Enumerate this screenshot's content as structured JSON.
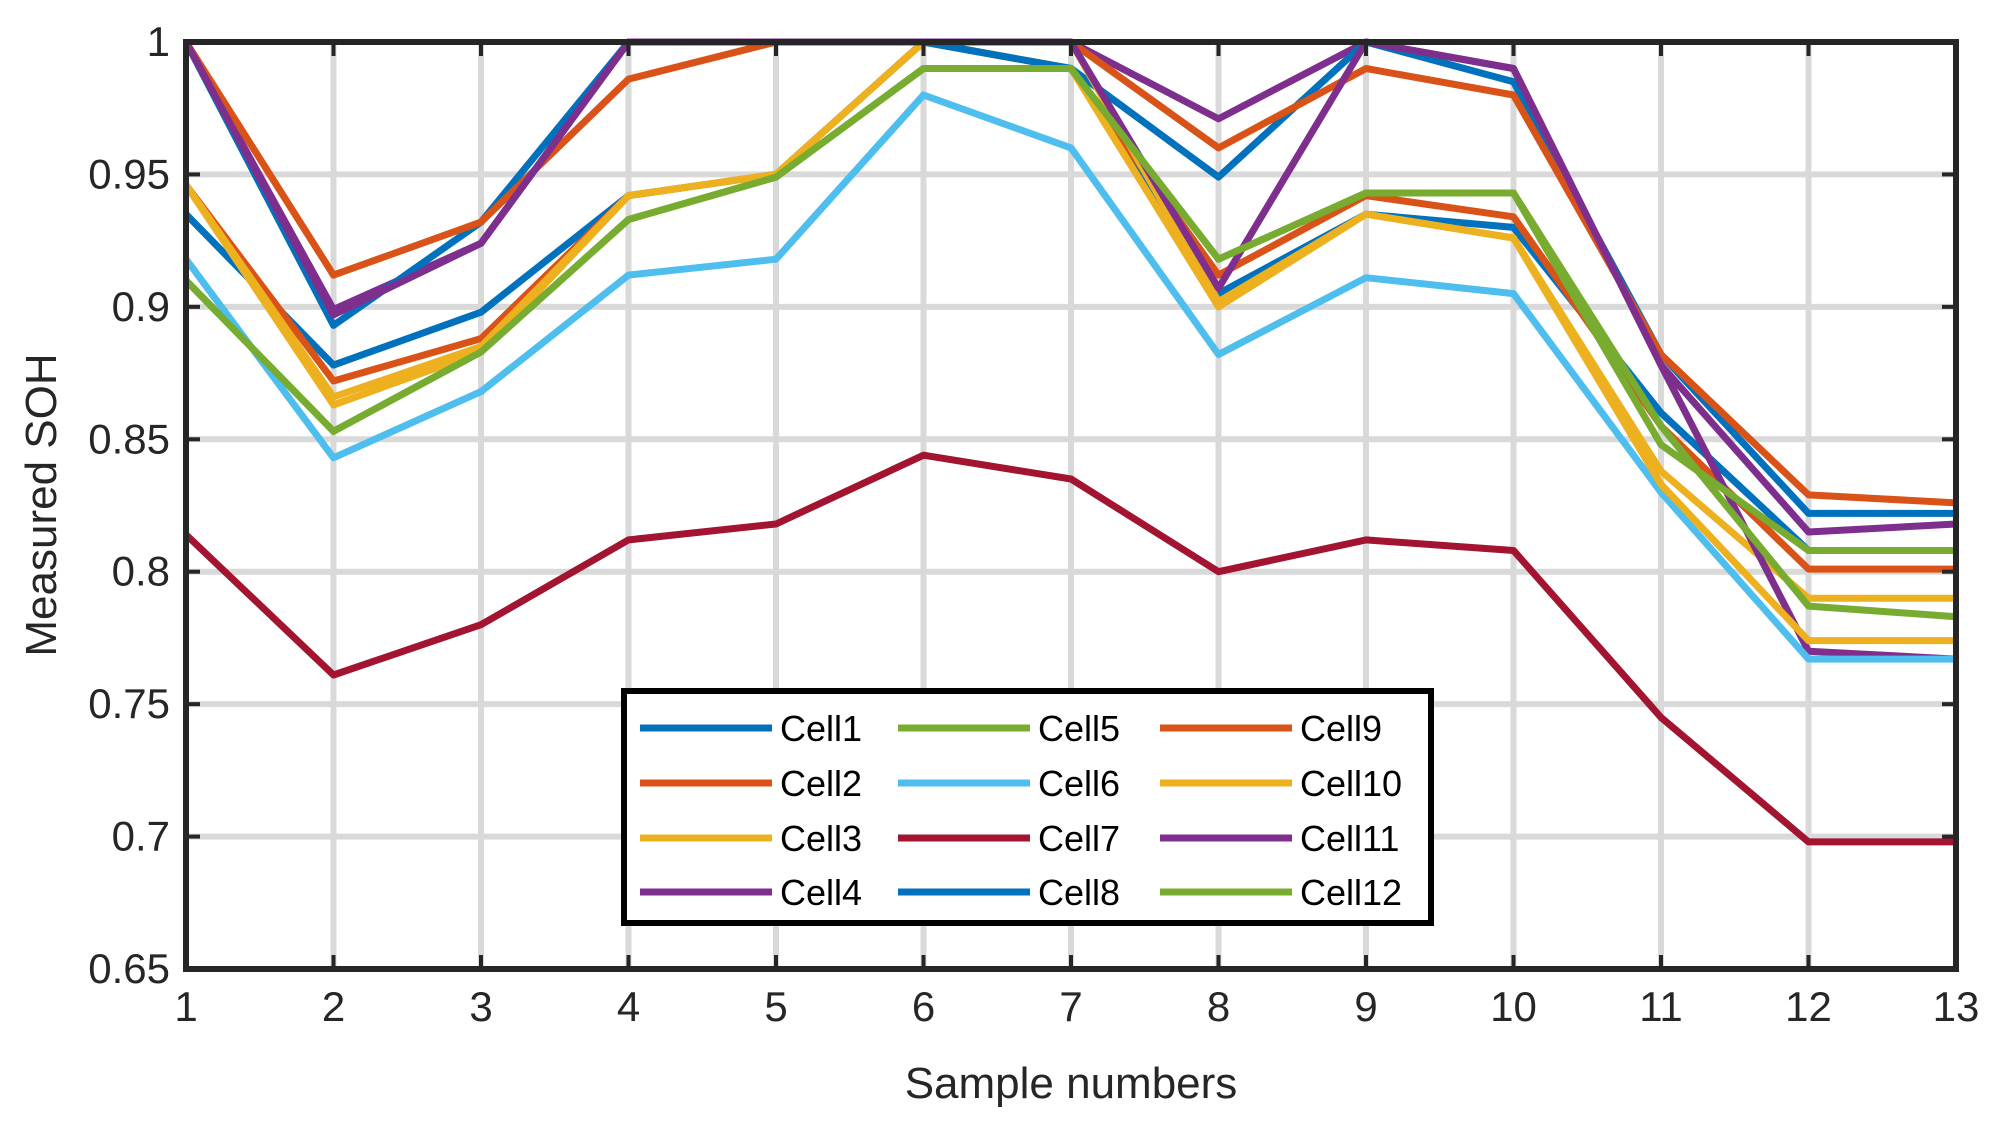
{
  "chart_data": {
    "type": "line",
    "title": "",
    "xlabel": "Sample numbers",
    "ylabel": "Measured SOH",
    "x": [
      1,
      2,
      3,
      4,
      5,
      6,
      7,
      8,
      9,
      10,
      11,
      12,
      13
    ],
    "xlim": [
      1,
      13
    ],
    "ylim": [
      0.65,
      1
    ],
    "xticks": [
      "1",
      "2",
      "3",
      "4",
      "5",
      "6",
      "7",
      "8",
      "9",
      "10",
      "11",
      "12",
      "13"
    ],
    "yticks": [
      "0.65",
      "0.7",
      "0.75",
      "0.8",
      "0.85",
      "0.9",
      "0.95",
      "1"
    ],
    "ytick_values": [
      0.65,
      0.7,
      0.75,
      0.8,
      0.85,
      0.9,
      0.95,
      1.0
    ],
    "grid": true,
    "legend_location": "bottom-center",
    "legend_columns": 3,
    "series": [
      {
        "name": "Cell1",
        "color": "#0072BD",
        "values": [
          0.935,
          0.878,
          0.898,
          0.942,
          0.95,
          1.0,
          0.99,
          0.905,
          0.935,
          0.93,
          0.86,
          0.808,
          0.808
        ]
      },
      {
        "name": "Cell2",
        "color": "#D95319",
        "values": [
          0.946,
          0.872,
          0.888,
          0.942,
          0.95,
          1.0,
          0.99,
          0.912,
          0.942,
          0.934,
          0.855,
          0.801,
          0.801
        ]
      },
      {
        "name": "Cell3",
        "color": "#EDB120",
        "values": [
          0.946,
          0.866,
          0.885,
          0.942,
          0.95,
          1.0,
          0.99,
          0.9,
          0.935,
          0.926,
          0.838,
          0.79,
          0.79
        ]
      },
      {
        "name": "Cell4",
        "color": "#7E2F8E",
        "values": [
          1.0,
          0.899,
          0.924,
          1.0,
          1.0,
          1.0,
          1.0,
          0.971,
          1.0,
          0.99,
          0.878,
          0.77,
          0.767
        ]
      },
      {
        "name": "Cell5",
        "color": "#77AC30",
        "values": [
          0.91,
          0.853,
          0.883,
          0.933,
          0.949,
          0.99,
          0.99,
          0.918,
          0.943,
          0.943,
          0.855,
          0.787,
          0.783
        ]
      },
      {
        "name": "Cell6",
        "color": "#4DBEEE",
        "values": [
          0.918,
          0.843,
          0.868,
          0.912,
          0.918,
          0.98,
          0.96,
          0.882,
          0.911,
          0.905,
          0.83,
          0.767,
          0.767
        ]
      },
      {
        "name": "Cell7",
        "color": "#A2142F",
        "values": [
          0.814,
          0.761,
          0.78,
          0.812,
          0.818,
          0.844,
          0.835,
          0.8,
          0.812,
          0.808,
          0.745,
          0.698,
          0.698
        ]
      },
      {
        "name": "Cell8",
        "color": "#0072BD",
        "values": [
          1.0,
          0.893,
          0.932,
          1.0,
          1.0,
          1.0,
          0.99,
          0.949,
          1.0,
          0.985,
          0.882,
          0.822,
          0.822
        ]
      },
      {
        "name": "Cell9",
        "color": "#D95319",
        "values": [
          1.0,
          0.912,
          0.932,
          0.986,
          1.0,
          1.0,
          1.0,
          0.96,
          0.99,
          0.98,
          0.882,
          0.829,
          0.826
        ]
      },
      {
        "name": "Cell10",
        "color": "#EDB120",
        "values": [
          0.946,
          0.863,
          0.883,
          0.942,
          0.95,
          1.0,
          1.0,
          0.902,
          0.935,
          0.926,
          0.833,
          0.774,
          0.774
        ]
      },
      {
        "name": "Cell11",
        "color": "#7E2F8E",
        "values": [
          1.0,
          0.897,
          0.924,
          1.0,
          1.0,
          1.0,
          1.0,
          0.907,
          1.0,
          0.99,
          0.878,
          0.815,
          0.818
        ]
      },
      {
        "name": "Cell12",
        "color": "#77AC30",
        "values": [
          0.91,
          0.853,
          0.883,
          0.933,
          0.949,
          0.99,
          0.99,
          0.918,
          0.943,
          0.943,
          0.848,
          0.808,
          0.808
        ]
      }
    ]
  }
}
